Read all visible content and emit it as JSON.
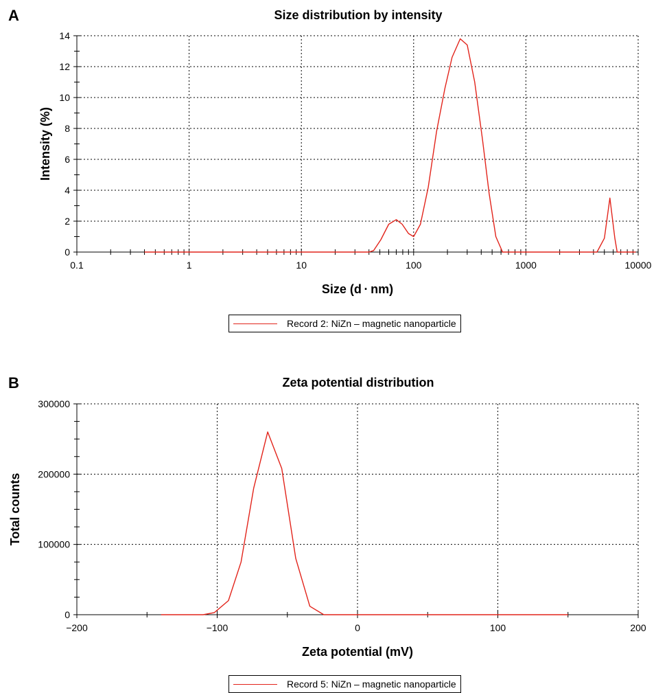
{
  "chart_data": [
    {
      "panel_label": "A",
      "type": "line",
      "title": "Size distribution by intensity",
      "xlabel": "Size (d · nm)",
      "ylabel": "Intensity (%)",
      "xscale": "log",
      "xlim": [
        0.1,
        10000
      ],
      "ylim": [
        0,
        14
      ],
      "x_ticks": [
        0.1,
        1,
        10,
        100,
        1000,
        10000
      ],
      "x_tick_labels": [
        "0.1",
        "1",
        "10",
        "100",
        "1000",
        "10000"
      ],
      "y_ticks": [
        0,
        2,
        4,
        6,
        8,
        10,
        12,
        14
      ],
      "y_tick_labels": [
        "0",
        "2",
        "4",
        "6",
        "8",
        "10",
        "12",
        "14"
      ],
      "grid": true,
      "legend": "bottom-center",
      "series": [
        {
          "name": "Record 2: NiZn – magnetic nanoparticle",
          "color": "#e2231a",
          "points": [
            [
              0.4,
              0
            ],
            [
              40,
              0
            ],
            [
              44,
              0.1
            ],
            [
              51,
              0.8
            ],
            [
              60,
              1.8
            ],
            [
              70,
              2.1
            ],
            [
              79,
              1.8
            ],
            [
              90,
              1.2
            ],
            [
              100,
              1.0
            ],
            [
              115,
              1.8
            ],
            [
              135,
              4.2
            ],
            [
              160,
              7.8
            ],
            [
              190,
              10.6
            ],
            [
              220,
              12.6
            ],
            [
              260,
              13.8
            ],
            [
              300,
              13.4
            ],
            [
              350,
              11.0
            ],
            [
              410,
              7.3
            ],
            [
              470,
              3.8
            ],
            [
              540,
              1.0
            ],
            [
              620,
              0
            ],
            [
              4300,
              0
            ],
            [
              5000,
              0.9
            ],
            [
              5600,
              3.5
            ],
            [
              6200,
              0.9
            ],
            [
              6500,
              0
            ],
            [
              9500,
              0
            ]
          ]
        }
      ]
    },
    {
      "panel_label": "B",
      "type": "line",
      "title": "Zeta potential distribution",
      "xlabel": "Zeta potential (mV)",
      "ylabel": "Total counts",
      "xlim": [
        -200,
        200
      ],
      "ylim": [
        0,
        300000
      ],
      "x_ticks": [
        -200,
        -100,
        0,
        100,
        200
      ],
      "x_tick_labels": [
        "−200",
        "−100",
        "0",
        "100",
        "200"
      ],
      "y_ticks": [
        0,
        100000,
        200000,
        300000
      ],
      "y_tick_labels": [
        "0",
        "100000",
        "200000",
        "300000"
      ],
      "grid": true,
      "legend": "bottom-center",
      "series": [
        {
          "name": "Record 5: NiZn – magnetic nanoparticle",
          "color": "#e2231a",
          "points": [
            [
              -140,
              0
            ],
            [
              -110,
              0
            ],
            [
              -102,
              3000
            ],
            [
              -92,
              20000
            ],
            [
              -83,
              75000
            ],
            [
              -74,
              180000
            ],
            [
              -64,
              260000
            ],
            [
              -54,
              208000
            ],
            [
              -44,
              80000
            ],
            [
              -34,
              12000
            ],
            [
              -24,
              0
            ],
            [
              150,
              0
            ]
          ]
        }
      ]
    }
  ]
}
